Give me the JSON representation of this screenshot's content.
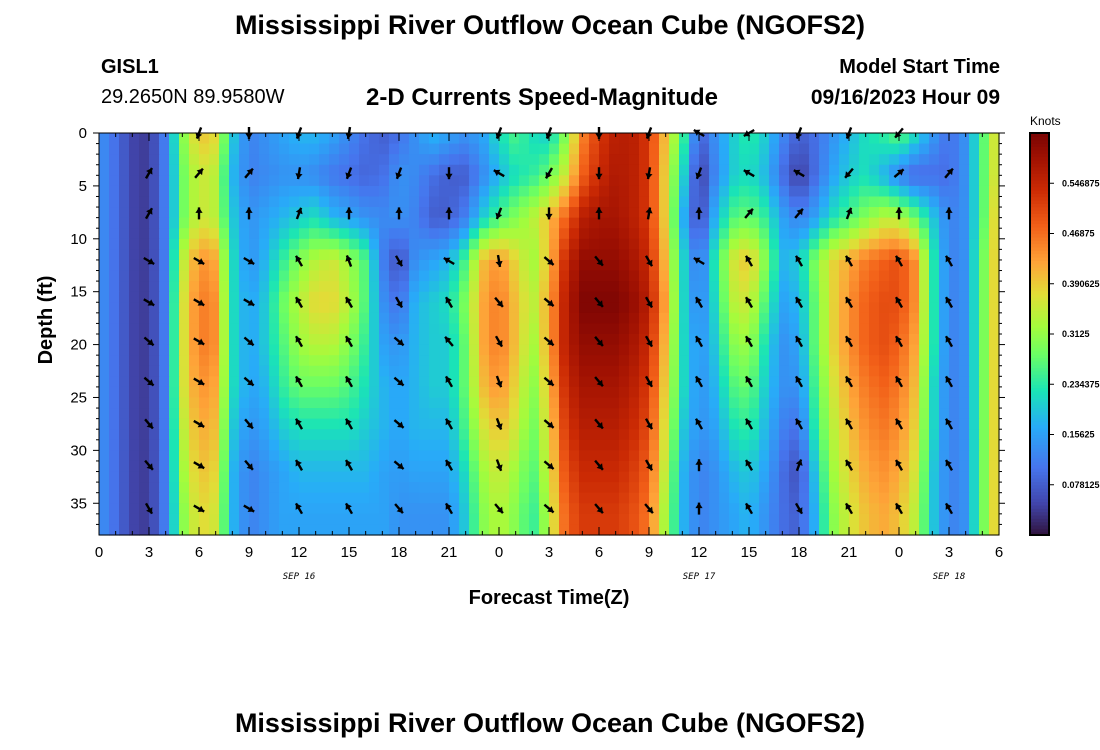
{
  "titles": {
    "main": "Mississippi River Outflow Ocean Cube (NGOFS2)",
    "second": "Mississippi River Outflow Ocean Cube (NGOFS2)"
  },
  "station": {
    "id": "GISL1",
    "coords": "29.2650N  89.9580W"
  },
  "model": {
    "label": "Model Start Time",
    "time": "09/16/2023 Hour 09"
  },
  "chart_data": {
    "type": "heatmap",
    "title": "2-D Currents Speed-Magnitude",
    "xlabel": "Forecast Time(Z)",
    "ylabel": "Depth (ft)",
    "x_range_hours": [
      0,
      54
    ],
    "y_range_ft": [
      0,
      38
    ],
    "y_inverted": true,
    "x_tick_labels": [
      "0",
      "3",
      "6",
      "9",
      "12",
      "15",
      "18",
      "21",
      "0",
      "3",
      "6",
      "9",
      "12",
      "15",
      "18",
      "21",
      "0",
      "3",
      "6"
    ],
    "x_tick_hours": [
      0,
      3,
      6,
      9,
      12,
      15,
      18,
      21,
      24,
      27,
      30,
      33,
      36,
      39,
      42,
      45,
      48,
      51,
      54
    ],
    "y_ticks": [
      0,
      5,
      10,
      15,
      20,
      25,
      30,
      35
    ],
    "y_tick_labels": [
      "0",
      "5",
      "10",
      "15",
      "20",
      "25",
      "30",
      "35"
    ],
    "date_labels": [
      {
        "text": "SEP 16",
        "hour": 12
      },
      {
        "text": "SEP 17",
        "hour": 36
      },
      {
        "text": "SEP 18",
        "hour": 51
      }
    ],
    "colorbar": {
      "unit": "Knots",
      "min": 0.0,
      "max": 0.625,
      "tick_values": [
        0.078125,
        0.15625,
        0.234375,
        0.3125,
        0.390625,
        0.46875,
        0.546875
      ],
      "tick_labels": [
        "0.078125",
        "0.15625",
        "0.234375",
        "0.3125",
        "0.390625",
        "0.46875",
        "0.546875"
      ]
    },
    "speed_nodes_hours": [
      0,
      1,
      2,
      3,
      4,
      5,
      6,
      7,
      8,
      9,
      10,
      11,
      12,
      13,
      14,
      15,
      16,
      17,
      18,
      19,
      20,
      21,
      22,
      23,
      24,
      25,
      26,
      27,
      28,
      29,
      30,
      31,
      32,
      33,
      34,
      35,
      36,
      37,
      38,
      39,
      40,
      41,
      42,
      43,
      44,
      45,
      46,
      47,
      48,
      49,
      50,
      51,
      52,
      53,
      54
    ],
    "speed_depth_ft": [
      0,
      4,
      8,
      12,
      16,
      20,
      24,
      28,
      32,
      36,
      38
    ],
    "speed_knots": [
      [
        0.14,
        0.1,
        0.05,
        0.04,
        0.12,
        0.3,
        0.4,
        0.38,
        0.2,
        0.12,
        0.14,
        0.16,
        0.18,
        0.18,
        0.16,
        0.13,
        0.1,
        0.08,
        0.1,
        0.14,
        0.18,
        0.16,
        0.14,
        0.16,
        0.22,
        0.26,
        0.22,
        0.2,
        0.3,
        0.45,
        0.52,
        0.56,
        0.56,
        0.52,
        0.4,
        0.26,
        0.08,
        0.14,
        0.2,
        0.24,
        0.2,
        0.13,
        0.08,
        0.1,
        0.14,
        0.18,
        0.22,
        0.24,
        0.28,
        0.22,
        0.15,
        0.1,
        0.14,
        0.26,
        0.4
      ],
      [
        0.14,
        0.1,
        0.05,
        0.04,
        0.12,
        0.28,
        0.36,
        0.34,
        0.18,
        0.12,
        0.13,
        0.14,
        0.14,
        0.13,
        0.11,
        0.1,
        0.09,
        0.1,
        0.14,
        0.13,
        0.1,
        0.08,
        0.08,
        0.13,
        0.18,
        0.22,
        0.24,
        0.28,
        0.36,
        0.48,
        0.54,
        0.57,
        0.56,
        0.52,
        0.38,
        0.22,
        0.04,
        0.13,
        0.2,
        0.22,
        0.18,
        0.1,
        0.04,
        0.1,
        0.16,
        0.2,
        0.22,
        0.18,
        0.12,
        0.09,
        0.1,
        0.1,
        0.14,
        0.26,
        0.4
      ],
      [
        0.14,
        0.1,
        0.05,
        0.04,
        0.12,
        0.28,
        0.36,
        0.34,
        0.2,
        0.14,
        0.16,
        0.18,
        0.2,
        0.22,
        0.18,
        0.16,
        0.14,
        0.13,
        0.14,
        0.12,
        0.08,
        0.08,
        0.12,
        0.2,
        0.26,
        0.3,
        0.34,
        0.4,
        0.48,
        0.56,
        0.58,
        0.58,
        0.56,
        0.52,
        0.38,
        0.18,
        0.05,
        0.18,
        0.26,
        0.28,
        0.24,
        0.16,
        0.12,
        0.16,
        0.22,
        0.26,
        0.3,
        0.34,
        0.34,
        0.28,
        0.2,
        0.12,
        0.14,
        0.26,
        0.42
      ],
      [
        0.14,
        0.1,
        0.05,
        0.04,
        0.12,
        0.34,
        0.44,
        0.42,
        0.22,
        0.14,
        0.18,
        0.24,
        0.3,
        0.34,
        0.36,
        0.32,
        0.26,
        0.12,
        0.06,
        0.14,
        0.16,
        0.18,
        0.26,
        0.4,
        0.44,
        0.38,
        0.32,
        0.4,
        0.54,
        0.6,
        0.6,
        0.6,
        0.58,
        0.54,
        0.4,
        0.22,
        0.1,
        0.24,
        0.36,
        0.4,
        0.3,
        0.18,
        0.2,
        0.3,
        0.38,
        0.42,
        0.46,
        0.48,
        0.5,
        0.44,
        0.24,
        0.12,
        0.14,
        0.28,
        0.42
      ],
      [
        0.14,
        0.1,
        0.05,
        0.04,
        0.12,
        0.36,
        0.46,
        0.44,
        0.22,
        0.16,
        0.2,
        0.28,
        0.34,
        0.38,
        0.38,
        0.34,
        0.26,
        0.14,
        0.1,
        0.18,
        0.2,
        0.22,
        0.3,
        0.42,
        0.46,
        0.4,
        0.34,
        0.42,
        0.56,
        0.62,
        0.62,
        0.62,
        0.6,
        0.56,
        0.42,
        0.22,
        0.12,
        0.22,
        0.34,
        0.36,
        0.26,
        0.16,
        0.18,
        0.28,
        0.38,
        0.44,
        0.48,
        0.5,
        0.5,
        0.44,
        0.24,
        0.12,
        0.14,
        0.28,
        0.42
      ],
      [
        0.14,
        0.1,
        0.05,
        0.04,
        0.12,
        0.36,
        0.46,
        0.44,
        0.22,
        0.16,
        0.2,
        0.26,
        0.32,
        0.34,
        0.34,
        0.3,
        0.24,
        0.16,
        0.14,
        0.18,
        0.2,
        0.2,
        0.28,
        0.42,
        0.46,
        0.4,
        0.32,
        0.42,
        0.56,
        0.6,
        0.6,
        0.6,
        0.58,
        0.54,
        0.4,
        0.22,
        0.14,
        0.2,
        0.3,
        0.32,
        0.22,
        0.14,
        0.16,
        0.28,
        0.38,
        0.44,
        0.48,
        0.5,
        0.48,
        0.42,
        0.24,
        0.12,
        0.14,
        0.28,
        0.42
      ],
      [
        0.14,
        0.1,
        0.05,
        0.04,
        0.12,
        0.36,
        0.44,
        0.42,
        0.22,
        0.16,
        0.18,
        0.24,
        0.28,
        0.28,
        0.28,
        0.26,
        0.22,
        0.18,
        0.16,
        0.18,
        0.2,
        0.2,
        0.28,
        0.4,
        0.44,
        0.38,
        0.3,
        0.4,
        0.54,
        0.58,
        0.58,
        0.58,
        0.56,
        0.52,
        0.38,
        0.22,
        0.14,
        0.18,
        0.26,
        0.28,
        0.2,
        0.14,
        0.14,
        0.26,
        0.36,
        0.42,
        0.46,
        0.48,
        0.46,
        0.4,
        0.22,
        0.12,
        0.14,
        0.28,
        0.42
      ],
      [
        0.14,
        0.1,
        0.05,
        0.04,
        0.12,
        0.34,
        0.42,
        0.4,
        0.2,
        0.14,
        0.16,
        0.2,
        0.22,
        0.22,
        0.22,
        0.22,
        0.2,
        0.18,
        0.16,
        0.18,
        0.18,
        0.18,
        0.26,
        0.36,
        0.4,
        0.36,
        0.28,
        0.38,
        0.52,
        0.56,
        0.56,
        0.56,
        0.54,
        0.5,
        0.36,
        0.2,
        0.14,
        0.16,
        0.22,
        0.24,
        0.18,
        0.12,
        0.1,
        0.24,
        0.34,
        0.4,
        0.44,
        0.46,
        0.44,
        0.38,
        0.22,
        0.12,
        0.14,
        0.28,
        0.42
      ],
      [
        0.14,
        0.1,
        0.05,
        0.04,
        0.12,
        0.32,
        0.4,
        0.38,
        0.18,
        0.12,
        0.14,
        0.16,
        0.18,
        0.18,
        0.18,
        0.18,
        0.18,
        0.16,
        0.15,
        0.16,
        0.16,
        0.16,
        0.22,
        0.32,
        0.36,
        0.32,
        0.26,
        0.36,
        0.5,
        0.54,
        0.54,
        0.54,
        0.52,
        0.48,
        0.34,
        0.18,
        0.12,
        0.14,
        0.18,
        0.2,
        0.16,
        0.1,
        0.06,
        0.2,
        0.32,
        0.38,
        0.42,
        0.44,
        0.42,
        0.36,
        0.2,
        0.12,
        0.14,
        0.28,
        0.42
      ],
      [
        0.14,
        0.1,
        0.05,
        0.04,
        0.12,
        0.3,
        0.38,
        0.36,
        0.18,
        0.12,
        0.14,
        0.16,
        0.16,
        0.16,
        0.16,
        0.16,
        0.16,
        0.16,
        0.14,
        0.14,
        0.14,
        0.14,
        0.2,
        0.3,
        0.34,
        0.3,
        0.24,
        0.34,
        0.48,
        0.52,
        0.52,
        0.52,
        0.5,
        0.46,
        0.32,
        0.18,
        0.12,
        0.14,
        0.16,
        0.18,
        0.14,
        0.1,
        0.08,
        0.18,
        0.3,
        0.36,
        0.4,
        0.42,
        0.4,
        0.34,
        0.2,
        0.12,
        0.14,
        0.28,
        0.42
      ],
      [
        0.14,
        0.1,
        0.05,
        0.04,
        0.12,
        0.3,
        0.38,
        0.36,
        0.18,
        0.12,
        0.14,
        0.16,
        0.16,
        0.16,
        0.16,
        0.16,
        0.16,
        0.16,
        0.14,
        0.14,
        0.14,
        0.14,
        0.2,
        0.3,
        0.34,
        0.3,
        0.24,
        0.34,
        0.48,
        0.52,
        0.52,
        0.52,
        0.5,
        0.46,
        0.32,
        0.18,
        0.12,
        0.14,
        0.16,
        0.18,
        0.14,
        0.1,
        0.08,
        0.18,
        0.3,
        0.36,
        0.4,
        0.42,
        0.4,
        0.34,
        0.2,
        0.12,
        0.14,
        0.28,
        0.42
      ]
    ],
    "arrow_hours": [
      3,
      6,
      9,
      12,
      15,
      18,
      21,
      24,
      27,
      30,
      33,
      36,
      39,
      42,
      45,
      48,
      51
    ],
    "arrow_depths_ft": [
      0,
      3.8,
      7.6,
      12.1,
      16,
      19.7,
      23.5,
      27.5,
      31.4,
      35.5
    ],
    "arrow_direction_deg": [
      [
        null,
        200,
        180,
        200,
        190,
        null,
        null,
        200,
        200,
        180,
        200,
        300,
        240,
        200,
        200,
        220,
        null
      ],
      [
        30,
        40,
        40,
        190,
        200,
        200,
        180,
        300,
        210,
        180,
        190,
        200,
        300,
        300,
        220,
        50,
        40
      ],
      [
        30,
        0,
        0,
        20,
        0,
        0,
        0,
        200,
        180,
        0,
        10,
        0,
        40,
        40,
        20,
        0,
        0
      ],
      [
        120,
        120,
        120,
        330,
        340,
        150,
        300,
        170,
        130,
        140,
        150,
        300,
        330,
        330,
        330,
        330,
        330
      ],
      [
        120,
        120,
        120,
        330,
        330,
        150,
        330,
        140,
        130,
        140,
        150,
        330,
        330,
        330,
        330,
        330,
        330
      ],
      [
        130,
        120,
        130,
        330,
        330,
        130,
        320,
        150,
        130,
        140,
        150,
        330,
        330,
        330,
        330,
        330,
        330
      ],
      [
        130,
        120,
        130,
        330,
        330,
        130,
        330,
        160,
        130,
        140,
        150,
        330,
        330,
        330,
        330,
        330,
        330
      ],
      [
        140,
        120,
        140,
        330,
        330,
        130,
        330,
        160,
        130,
        140,
        150,
        330,
        330,
        330,
        330,
        330,
        330
      ],
      [
        140,
        120,
        140,
        330,
        330,
        130,
        330,
        160,
        130,
        140,
        150,
        0,
        330,
        20,
        330,
        330,
        330
      ],
      [
        150,
        120,
        120,
        330,
        330,
        140,
        330,
        140,
        130,
        140,
        140,
        0,
        330,
        150,
        330,
        330,
        330
      ]
    ]
  }
}
